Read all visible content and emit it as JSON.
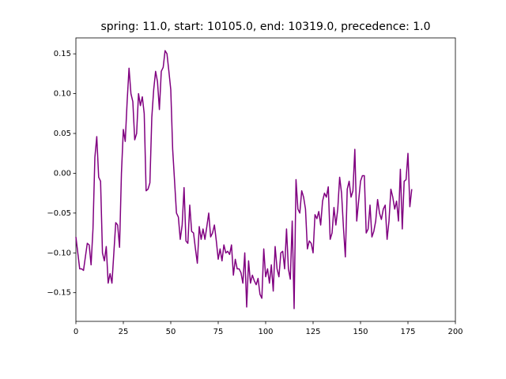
{
  "chart_data": {
    "type": "line",
    "title": "spring: 11.0, start: 10105.0, end: 10319.0, precedence: 1.0",
    "color": "#800080",
    "x": [
      0,
      1,
      2,
      3,
      4,
      5,
      6,
      7,
      8,
      9,
      10,
      11,
      12,
      13,
      14,
      15,
      16,
      17,
      18,
      19,
      20,
      21,
      22,
      23,
      24,
      25,
      26,
      27,
      28,
      29,
      30,
      31,
      32,
      33,
      34,
      35,
      36,
      37,
      38,
      39,
      40,
      41,
      42,
      43,
      44,
      45,
      46,
      47,
      48,
      49,
      50,
      51,
      52,
      53,
      54,
      55,
      56,
      57,
      58,
      59,
      60,
      61,
      62,
      63,
      64,
      65,
      66,
      67,
      68,
      69,
      70,
      71,
      72,
      73,
      74,
      75,
      76,
      77,
      78,
      79,
      80,
      81,
      82,
      83,
      84,
      85,
      86,
      87,
      88,
      89,
      90,
      91,
      92,
      93,
      94,
      95,
      96,
      97,
      98,
      99,
      100,
      101,
      102,
      103,
      104,
      105,
      106,
      107,
      108,
      109,
      110,
      111,
      112,
      113,
      114,
      115,
      116,
      117,
      118,
      119,
      120,
      121,
      122,
      123,
      124,
      125,
      126,
      127,
      128,
      129,
      130,
      131,
      132,
      133,
      134,
      135,
      136,
      137,
      138,
      139,
      140,
      141,
      142,
      143,
      144,
      145,
      146,
      147,
      148,
      149,
      150,
      151,
      152,
      153,
      154,
      155,
      156,
      157,
      158,
      159,
      160,
      161,
      162,
      163,
      164,
      165,
      166,
      167,
      168,
      169,
      170,
      171,
      172,
      173,
      174,
      175,
      176,
      177
    ],
    "values": [
      -0.08,
      -0.1,
      -0.12,
      -0.12,
      -0.122,
      -0.105,
      -0.088,
      -0.09,
      -0.115,
      -0.07,
      0.02,
      0.046,
      -0.005,
      -0.01,
      -0.1,
      -0.11,
      -0.092,
      -0.138,
      -0.126,
      -0.138,
      -0.1,
      -0.062,
      -0.065,
      -0.093,
      0.0,
      0.055,
      0.04,
      0.09,
      0.132,
      0.1,
      0.09,
      0.042,
      0.05,
      0.1,
      0.085,
      0.096,
      0.075,
      -0.022,
      -0.02,
      -0.012,
      0.07,
      0.105,
      0.128,
      0.115,
      0.08,
      0.128,
      0.133,
      0.154,
      0.15,
      0.128,
      0.105,
      0.03,
      -0.01,
      -0.05,
      -0.055,
      -0.083,
      -0.065,
      -0.018,
      -0.085,
      -0.088,
      -0.04,
      -0.073,
      -0.075,
      -0.095,
      -0.113,
      -0.067,
      -0.083,
      -0.07,
      -0.083,
      -0.067,
      -0.05,
      -0.08,
      -0.075,
      -0.065,
      -0.085,
      -0.108,
      -0.095,
      -0.11,
      -0.09,
      -0.1,
      -0.098,
      -0.102,
      -0.09,
      -0.128,
      -0.108,
      -0.12,
      -0.12,
      -0.125,
      -0.138,
      -0.1,
      -0.168,
      -0.11,
      -0.138,
      -0.128,
      -0.135,
      -0.14,
      -0.132,
      -0.152,
      -0.157,
      -0.095,
      -0.13,
      -0.12,
      -0.138,
      -0.115,
      -0.148,
      -0.092,
      -0.12,
      -0.13,
      -0.1,
      -0.098,
      -0.12,
      -0.07,
      -0.12,
      -0.133,
      -0.06,
      -0.17,
      -0.008,
      -0.045,
      -0.05,
      -0.022,
      -0.03,
      -0.045,
      -0.095,
      -0.085,
      -0.088,
      -0.1,
      -0.052,
      -0.057,
      -0.048,
      -0.065,
      -0.035,
      -0.025,
      -0.03,
      -0.017,
      -0.083,
      -0.075,
      -0.043,
      -0.065,
      -0.045,
      -0.005,
      -0.025,
      -0.068,
      -0.105,
      -0.02,
      -0.01,
      -0.03,
      -0.022,
      0.03,
      -0.06,
      -0.035,
      -0.01,
      -0.003,
      -0.003,
      -0.075,
      -0.07,
      -0.04,
      -0.08,
      -0.073,
      -0.06,
      -0.033,
      -0.05,
      -0.058,
      -0.045,
      -0.04,
      -0.083,
      -0.06,
      -0.02,
      -0.03,
      -0.045,
      -0.035,
      -0.06,
      0.005,
      -0.07,
      -0.01,
      -0.008,
      0.025,
      -0.042,
      -0.02
    ],
    "xlim": [
      0,
      200
    ],
    "xticks": [
      0,
      25,
      50,
      75,
      100,
      125,
      150,
      175,
      200
    ],
    "ylim": [
      -0.186,
      0.17
    ],
    "yticks": [
      {
        "value": -0.15,
        "label": "−0.15"
      },
      {
        "value": -0.1,
        "label": "−0.10"
      },
      {
        "value": -0.05,
        "label": "−0.05"
      },
      {
        "value": 0,
        "label": "0.00"
      },
      {
        "value": 0.05,
        "label": "0.05"
      },
      {
        "value": 0.1,
        "label": "0.10"
      },
      {
        "value": 0.15,
        "label": "0.15"
      }
    ]
  }
}
